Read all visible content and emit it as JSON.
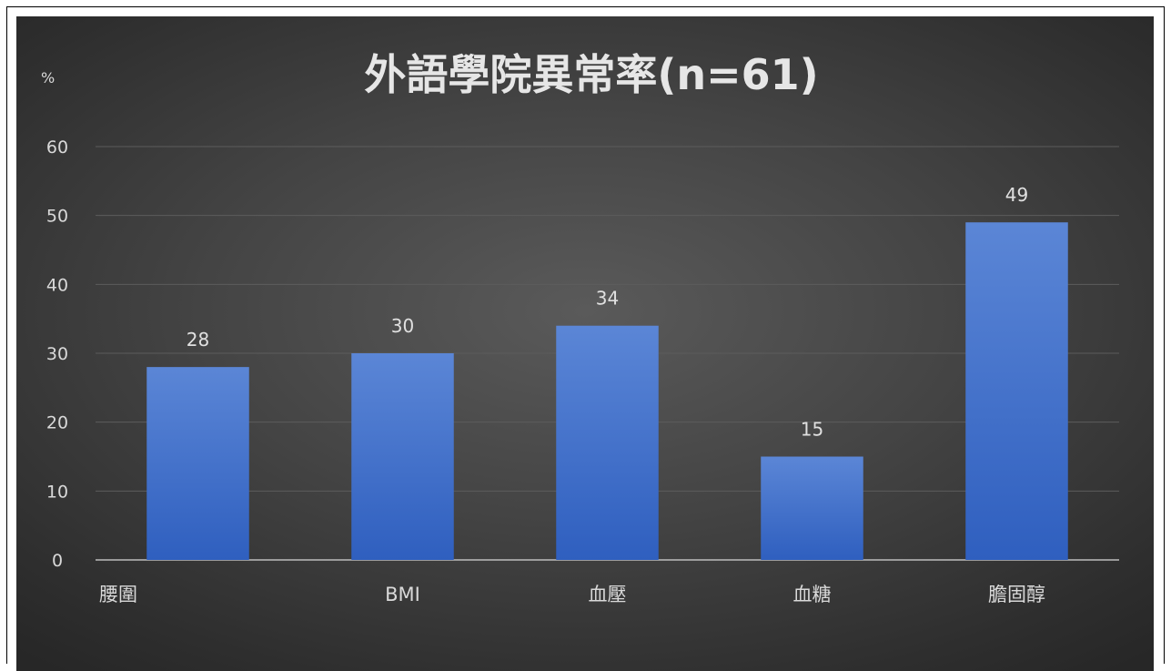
{
  "chart_data": {
    "type": "bar",
    "title": "外語學院異常率(n=61)",
    "ylabel": "%",
    "xlabel": "",
    "categories": [
      "腰圍",
      "BMI",
      "血壓",
      "血糖",
      "膽固醇"
    ],
    "values": [
      28,
      30,
      34,
      15,
      49
    ],
    "data_labels": [
      "28",
      "30",
      "34",
      "15",
      "49"
    ],
    "ylim": [
      0,
      60
    ],
    "yticks": [
      0,
      10,
      20,
      30,
      40,
      50,
      60
    ],
    "grid": true,
    "legend": "none",
    "colors": {
      "bar_top": "#5b86d6",
      "bar_bottom": "#2f5fbf",
      "background_center": "#5a5a5a",
      "background_edge": "#272727"
    }
  }
}
